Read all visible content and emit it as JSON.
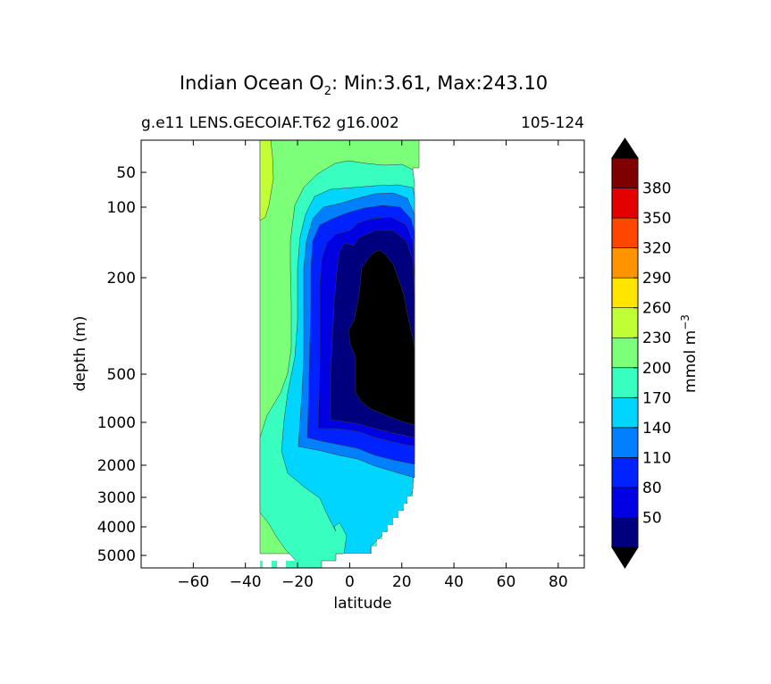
{
  "chart_data": {
    "type": "heatmap",
    "title": {
      "prefix": "Indian Ocean O",
      "subscript": "2",
      "suffix": ": Min:3.61, Max:243.10"
    },
    "subtitle_left": "g.e11 LENS.GECOIAF.T62 g16.002",
    "subtitle_right": "105-124",
    "xlabel": "latitude",
    "ylabel": "depth (m)",
    "x_ticks": [
      -60,
      -40,
      -20,
      0,
      20,
      40,
      60,
      80
    ],
    "x_tick_labels": [
      "−60",
      "−40",
      "−20",
      "0",
      "20",
      "40",
      "60",
      "80"
    ],
    "xlim": [
      -80,
      90
    ],
    "y_ticks": [
      50,
      100,
      200,
      500,
      1000,
      2000,
      3000,
      4000,
      5000
    ],
    "y_tick_labels": [
      "50",
      "100",
      "200",
      "500",
      "1000",
      "2000",
      "3000",
      "4000",
      "5000"
    ],
    "y_scale": "piecewise (compressed deep ocean)",
    "y_inverted": true,
    "data_extent": {
      "lat_min": -34,
      "lat_max": 26
    },
    "colorbar": {
      "label": "mmol m",
      "label_superscript": "−3",
      "extend": "both",
      "levels": [
        20,
        50,
        80,
        110,
        140,
        170,
        200,
        230,
        260,
        290,
        320,
        350,
        380,
        410
      ],
      "tick_labels": [
        "50",
        "80",
        "110",
        "140",
        "170",
        "200",
        "230",
        "260",
        "290",
        "320",
        "350",
        "380"
      ],
      "colors": [
        "#00007f",
        "#0000e3",
        "#0022ff",
        "#007fff",
        "#00d5ff",
        "#38ffbf",
        "#7cff79",
        "#c0ff36",
        "#ffe500",
        "#ff9400",
        "#ff4600",
        "#e30000",
        "#7f0000"
      ],
      "under_color": "#000000",
      "over_color": "#000000"
    },
    "regions": [
      {
        "range": "200-230",
        "description": "surface and southern band"
      },
      {
        "range": "230-260",
        "description": "near 34S upper layer"
      },
      {
        "range": "170-200",
        "description": "intermediate and deep southern water"
      },
      {
        "range": "140-170",
        "description": "deep water below 2000 m"
      },
      {
        "range": "110-140",
        "description": "thermocline ring"
      },
      {
        "range": "80-110",
        "description": "thermocline ring"
      },
      {
        "range": "50-80",
        "description": "oxygen minimum zone edge"
      },
      {
        "range": "20-50",
        "description": "oxygen minimum zone"
      },
      {
        "range": "<20",
        "description": "oxygen minimum zone core 0-25N, 200-1000 m"
      }
    ]
  }
}
